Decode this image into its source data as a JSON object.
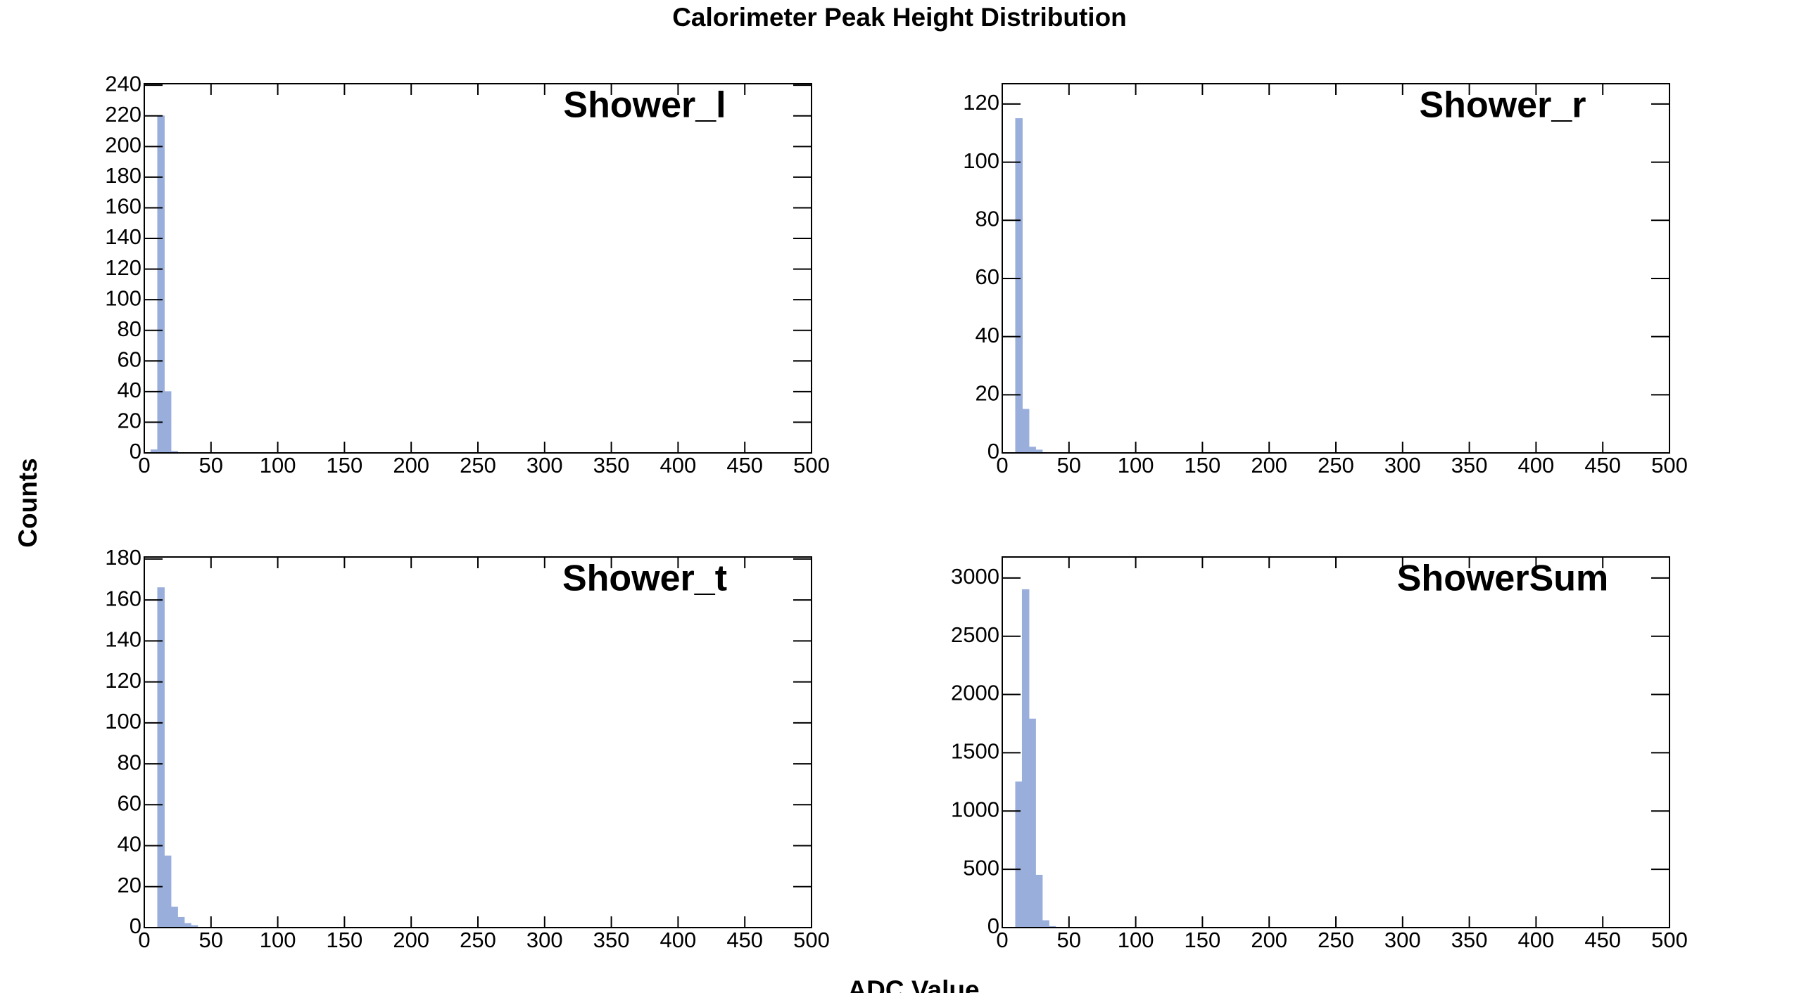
{
  "title": "Calorimeter Peak Height Distribution",
  "x_label": "ADC Value",
  "y_label": "Counts",
  "chart_data": [
    {
      "type": "histogram",
      "title": "Shower_l",
      "color": "#9aaedc",
      "bins": [
        0,
        5,
        10,
        15,
        20,
        25,
        30,
        35,
        40
      ],
      "values": [
        0,
        2,
        220,
        40,
        1,
        0,
        0,
        0
      ],
      "xlim": [
        0,
        500
      ],
      "xticks": [
        0,
        50,
        100,
        150,
        200,
        250,
        300,
        350,
        400,
        450,
        500
      ],
      "ylim": [
        0,
        241
      ],
      "yticks": [
        0,
        20,
        40,
        60,
        80,
        100,
        120,
        140,
        160,
        180,
        200,
        220,
        240
      ]
    },
    {
      "type": "histogram",
      "title": "Shower_r",
      "color": "#9aaedc",
      "bins": [
        0,
        5,
        10,
        15,
        20,
        25,
        30,
        35,
        40
      ],
      "values": [
        0,
        0,
        115,
        15,
        2,
        1,
        0,
        0
      ],
      "xlim": [
        0,
        500
      ],
      "xticks": [
        0,
        50,
        100,
        150,
        200,
        250,
        300,
        350,
        400,
        450,
        500
      ],
      "ylim": [
        0,
        127
      ],
      "yticks": [
        0,
        20,
        40,
        60,
        80,
        100,
        120
      ]
    },
    {
      "type": "histogram",
      "title": "Shower_t",
      "color": "#9aaedc",
      "bins": [
        0,
        5,
        10,
        15,
        20,
        25,
        30,
        35,
        40
      ],
      "values": [
        0,
        0,
        166,
        35,
        10,
        5,
        2,
        1
      ],
      "xlim": [
        0,
        500
      ],
      "xticks": [
        0,
        50,
        100,
        150,
        200,
        250,
        300,
        350,
        400,
        450,
        500
      ],
      "ylim": [
        0,
        181
      ],
      "yticks": [
        0,
        20,
        40,
        60,
        80,
        100,
        120,
        140,
        160,
        180
      ]
    },
    {
      "type": "histogram",
      "title": "ShowerSum",
      "color": "#9aaedc",
      "bins": [
        0,
        5,
        10,
        15,
        20,
        25,
        30,
        35,
        40
      ],
      "values": [
        0,
        0,
        1250,
        2900,
        1790,
        450,
        60,
        10
      ],
      "xlim": [
        0,
        500
      ],
      "xticks": [
        0,
        50,
        100,
        150,
        200,
        250,
        300,
        350,
        400,
        450,
        500
      ],
      "ylim": [
        0,
        3180
      ],
      "yticks": [
        0,
        500,
        1000,
        1500,
        2000,
        2500,
        3000
      ]
    }
  ]
}
